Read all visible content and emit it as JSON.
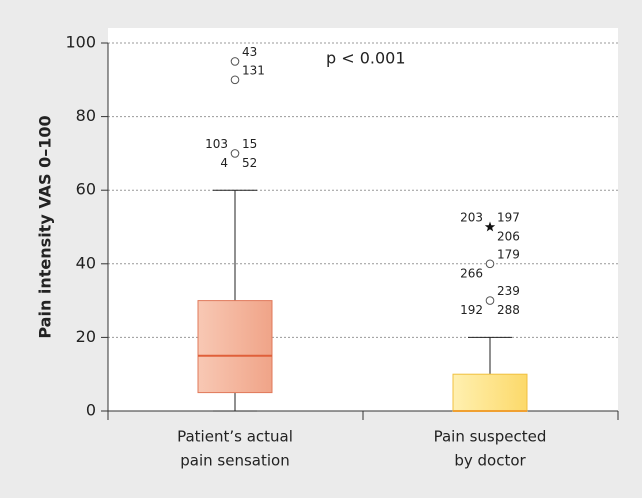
{
  "chart_data": {
    "type": "box",
    "y_label": "Pain intensity VAS 0–100",
    "annotation": "p < 0.001",
    "ylim": [
      0,
      100
    ],
    "yticks": [
      0,
      20,
      40,
      60,
      80,
      100
    ],
    "grid": true,
    "categories": [
      [
        "Patient’s actual",
        "pain sensation"
      ],
      [
        "Pain suspected",
        "by doctor"
      ]
    ],
    "series": [
      {
        "color": "#f4b29a",
        "edge": "#e0785a",
        "median_color": "#e0603a",
        "whisker_low": 0,
        "q1": 5,
        "median": 15,
        "q3": 30,
        "whisker_high": 60,
        "outliers": [
          {
            "value": 95,
            "marker": "circle",
            "labels": [
              "43"
            ]
          },
          {
            "value": 90,
            "marker": "circle",
            "labels": [
              "131"
            ]
          },
          {
            "value": 70,
            "marker": "circle",
            "labels": [
              "103",
              "15",
              "4",
              "52"
            ]
          }
        ]
      },
      {
        "color": "#fde48a",
        "edge": "#f0c040",
        "median_color": "#f0a030",
        "whisker_low": 0,
        "q1": 0,
        "median": 0,
        "q3": 10,
        "whisker_high": 20,
        "outliers": [
          {
            "value": 50,
            "marker": "star",
            "labels": [
              "203",
              "197",
              "206"
            ]
          },
          {
            "value": 40,
            "marker": "circle",
            "labels": [
              "179",
              "266"
            ]
          },
          {
            "value": 30,
            "marker": "circle",
            "labels": [
              "239",
              "192",
              "288"
            ]
          }
        ]
      }
    ]
  }
}
